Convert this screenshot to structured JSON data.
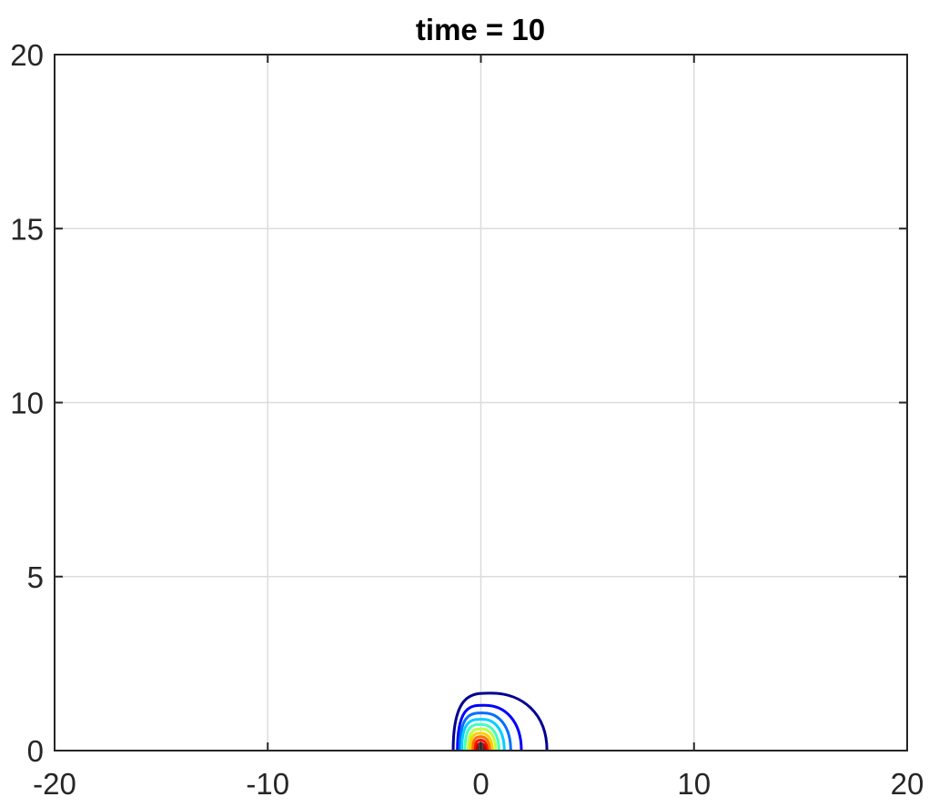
{
  "chart_data": {
    "type": "contour",
    "title": "time = 10",
    "xlabel": "",
    "ylabel": "",
    "xlim": [
      -20,
      20
    ],
    "ylim": [
      0,
      20
    ],
    "x_ticks": [
      -20,
      -10,
      0,
      10,
      20
    ],
    "y_ticks": [
      0,
      5,
      10,
      15,
      20
    ],
    "x_tick_labels": [
      "-20",
      "-10",
      "0",
      "10",
      "20"
    ],
    "y_tick_labels": [
      "0",
      "5",
      "10",
      "15",
      "20"
    ],
    "grid": true,
    "legend": "none",
    "colormap": "jet",
    "contours": [
      {
        "color": "#00008f",
        "x_left": -1.3,
        "x_right": 3.1,
        "y_top": 1.65,
        "x_peak": 0.5
      },
      {
        "color": "#0000ff",
        "x_left": -1.1,
        "x_right": 1.9,
        "y_top": 1.3,
        "x_peak": 0.2
      },
      {
        "color": "#0070ff",
        "x_left": -1.0,
        "x_right": 1.4,
        "y_top": 1.08,
        "x_peak": 0.15
      },
      {
        "color": "#00cfff",
        "x_left": -0.9,
        "x_right": 1.1,
        "y_top": 0.9,
        "x_peak": 0.1
      },
      {
        "color": "#40ffbf",
        "x_left": -0.75,
        "x_right": 0.85,
        "y_top": 0.75,
        "x_peak": 0.05
      },
      {
        "color": "#bfff40",
        "x_left": -0.6,
        "x_right": 0.7,
        "y_top": 0.62,
        "x_peak": 0.05
      },
      {
        "color": "#ffcf00",
        "x_left": -0.5,
        "x_right": 0.55,
        "y_top": 0.5,
        "x_peak": 0.02
      },
      {
        "color": "#ff7000",
        "x_left": -0.38,
        "x_right": 0.42,
        "y_top": 0.4,
        "x_peak": 0.02
      },
      {
        "color": "#ff1000",
        "x_left": -0.27,
        "x_right": 0.3,
        "y_top": 0.3,
        "x_peak": 0.0
      },
      {
        "color": "#c00000",
        "x_left": -0.18,
        "x_right": 0.2,
        "y_top": 0.2,
        "x_peak": 0.0
      },
      {
        "color": "#8f0000",
        "x_left": -0.1,
        "x_right": 0.12,
        "y_top": 0.12,
        "x_peak": 0.0
      },
      {
        "color": "#4a4a4a",
        "x_left": -0.05,
        "x_right": 0.06,
        "y_top": 0.22,
        "x_peak": 0.0
      }
    ]
  }
}
